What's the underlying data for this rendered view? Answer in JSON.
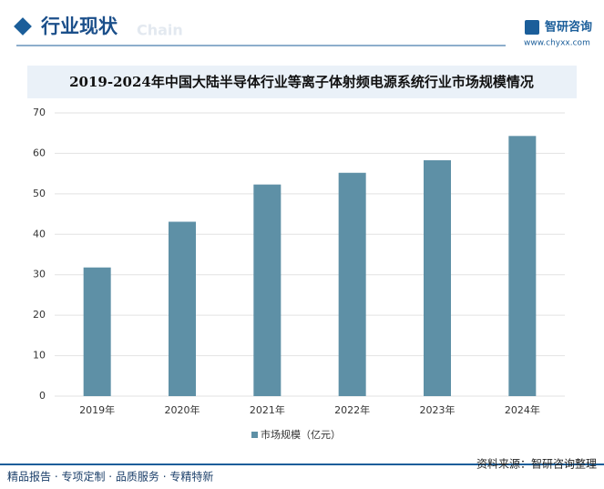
{
  "header": {
    "title": "行业现状",
    "ghost": "Chain",
    "brand": "智研咨询",
    "url": "www.chyxx.com"
  },
  "chart_data": {
    "type": "bar",
    "title": "2019-2024年中国大陆半导体行业等离子体射频电源系统行业市场规模情况",
    "categories": [
      "2019年",
      "2020年",
      "2021年",
      "2022年",
      "2023年",
      "2024年"
    ],
    "series": [
      {
        "name": "市场规模（亿元）",
        "color": "#5e90a6",
        "values": [
          31.8,
          43.1,
          52.3,
          55.2,
          58.3,
          64.3
        ]
      }
    ],
    "ylim": [
      0,
      70
    ],
    "yticks": [
      0,
      10,
      20,
      30,
      40,
      50,
      60,
      70
    ],
    "grid": true
  },
  "footer": {
    "tagline": "精品报告 · 专项定制 · 品质服务 · 专精特新",
    "source": "资料来源：智研咨询整理"
  }
}
